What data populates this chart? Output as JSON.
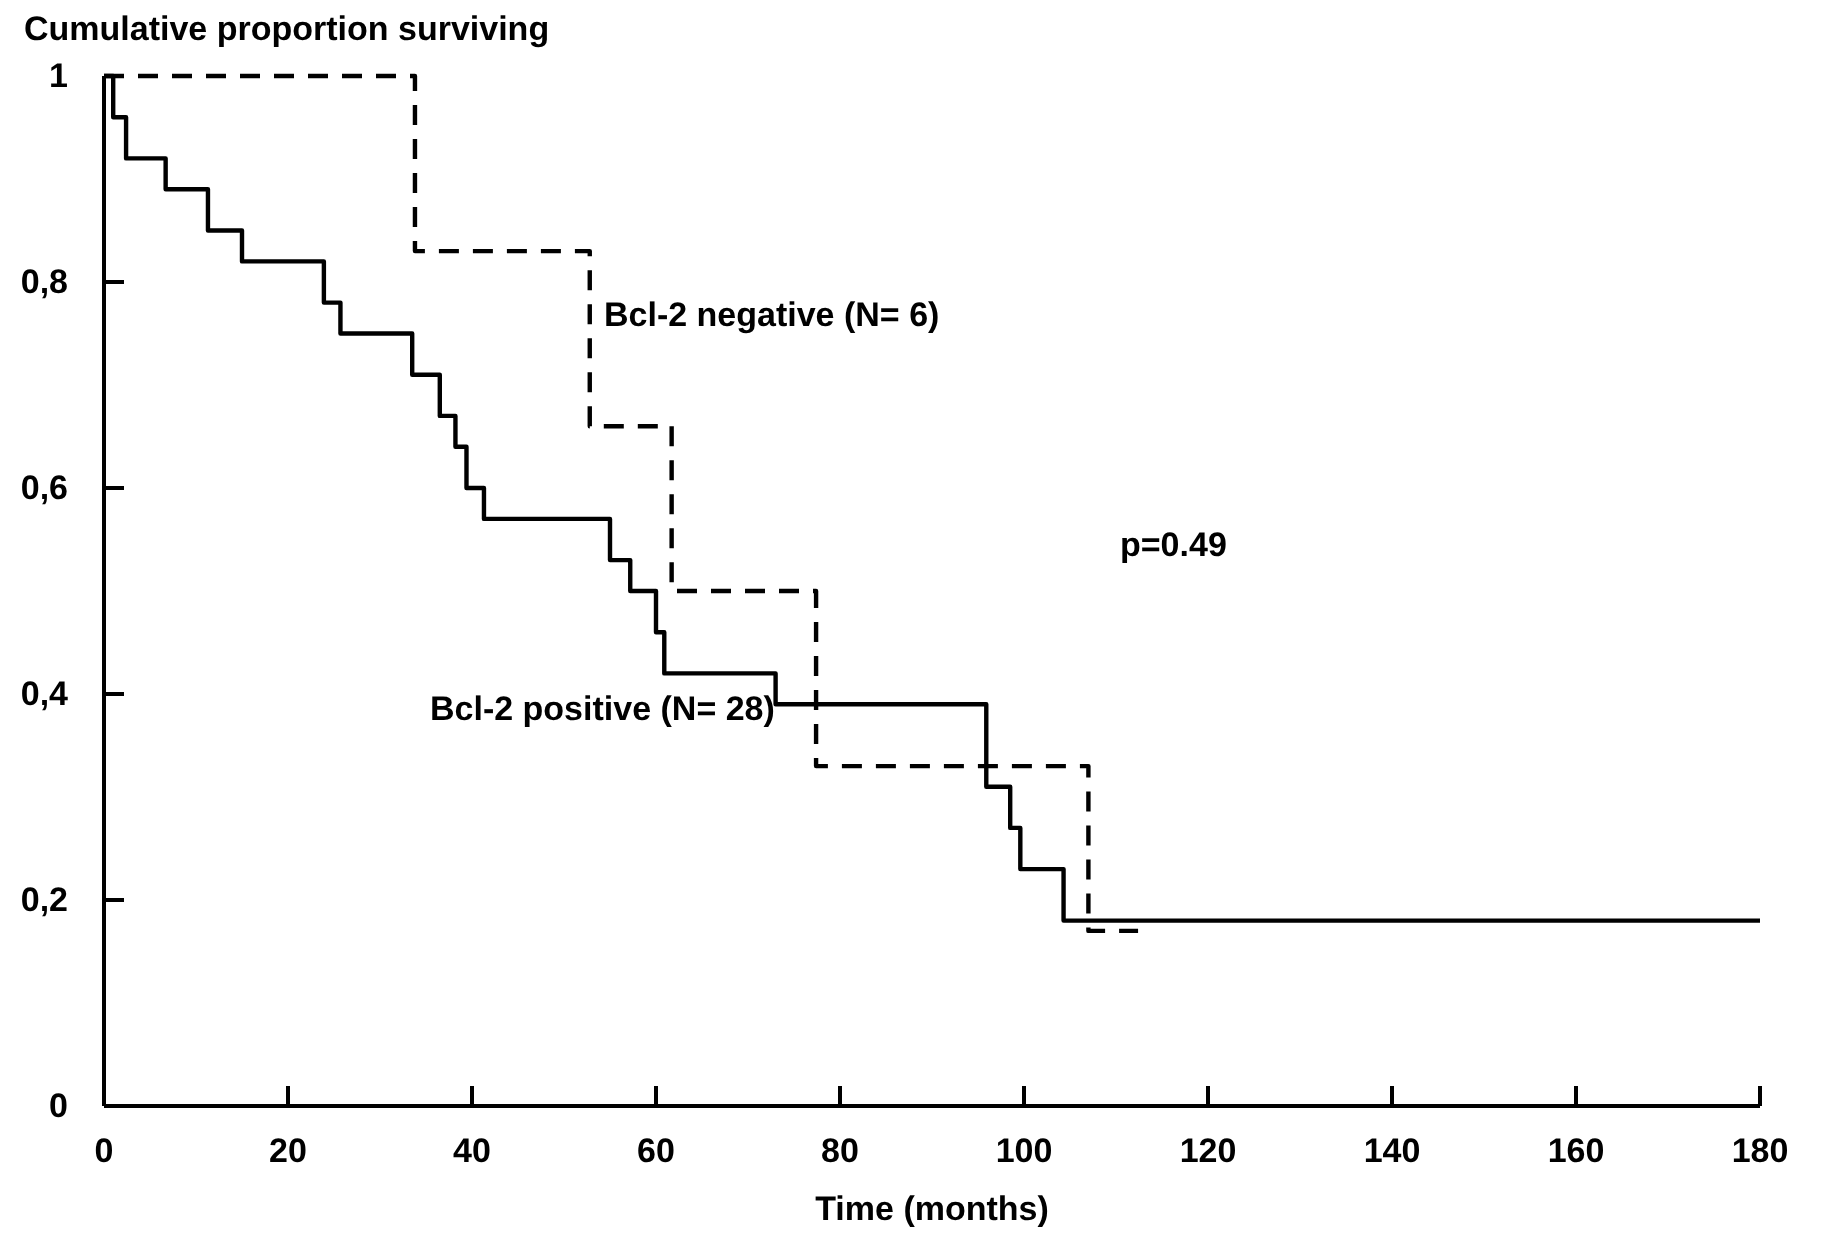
{
  "chart_data": {
    "type": "step",
    "ylabel": "Cumulative proportion surviving",
    "xlabel": "Time (months)",
    "xlim": [
      0,
      180
    ],
    "xticks": [
      0,
      20,
      40,
      60,
      80,
      100,
      120,
      140,
      160,
      180
    ],
    "ylim": [
      0,
      1
    ],
    "yticks": [
      0,
      {
        "value": 0.2,
        "label": "0,2"
      },
      {
        "value": 0.4,
        "label": "0,4"
      },
      {
        "value": 0.6,
        "label": "0,6"
      },
      {
        "value": 0.8,
        "label": "0,8"
      },
      1
    ],
    "grid": false,
    "marker": "none",
    "series": [
      {
        "name": "Bcl-2 negative (N= 6)",
        "color": "#000000",
        "line_style": "dashed",
        "x": [
          0,
          33.8,
          52.8,
          61.7,
          77.4,
          107,
          112.4
        ],
        "values": [
          1,
          0.83,
          0.66,
          0.5,
          0.33,
          0.17,
          0.17
        ]
      },
      {
        "name": "Bcl-2 positive (N= 28)",
        "color": "#000000",
        "line_style": "solid",
        "x": [
          0,
          1,
          2.4,
          6.7,
          11.3,
          15,
          23.9,
          25.7,
          33.5,
          36.5,
          38.2,
          39.4,
          41.3,
          55,
          57.2,
          60,
          60.9,
          73,
          95.9,
          98.5,
          99.6,
          104.3,
          180
        ],
        "values": [
          1,
          0.96,
          0.92,
          0.89,
          0.85,
          0.82,
          0.78,
          0.75,
          0.71,
          0.67,
          0.64,
          0.6,
          0.57,
          0.53,
          0.5,
          0.46,
          0.42,
          0.39,
          0.31,
          0.27,
          0.23,
          0.18,
          0.18
        ]
      }
    ],
    "annotations": [
      "p=0.49"
    ]
  }
}
